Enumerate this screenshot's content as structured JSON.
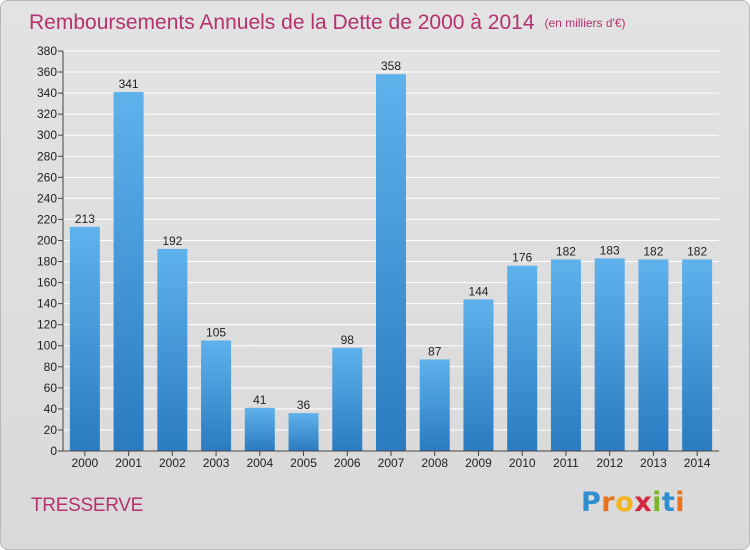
{
  "header": {
    "title": "Remboursements Annuels de la Dette de 2000 à 2014",
    "subtitle": "(en milliers d'€)"
  },
  "footer": {
    "commune": "TRESSERVE",
    "brand_letters": [
      "P",
      "r",
      "o",
      "x",
      "i",
      "t",
      "i"
    ],
    "brand_colors": [
      "#2d8fd0",
      "#e8731a",
      "#f2b51b",
      "#d7263d",
      "#7bb52b",
      "#2d8fd0",
      "#e8731a"
    ]
  },
  "colors": {
    "title": "#b5316f",
    "bar_light": "#5fb2ec",
    "bar_dark": "#2a7bc0",
    "grid": "#ffffff",
    "axis": "#444444"
  },
  "chart_data": {
    "type": "bar",
    "categories": [
      "2000",
      "2001",
      "2002",
      "2003",
      "2004",
      "2005",
      "2006",
      "2007",
      "2008",
      "2009",
      "2010",
      "2011",
      "2012",
      "2013",
      "2014"
    ],
    "values": [
      213,
      341,
      192,
      105,
      41,
      36,
      98,
      358,
      87,
      144,
      176,
      182,
      183,
      182,
      182
    ],
    "ylim": [
      0,
      380
    ],
    "yticks": [
      0,
      20,
      40,
      60,
      80,
      100,
      120,
      140,
      160,
      180,
      200,
      220,
      240,
      260,
      280,
      300,
      320,
      340,
      360,
      380
    ],
    "data_labels": true,
    "grid": true
  }
}
